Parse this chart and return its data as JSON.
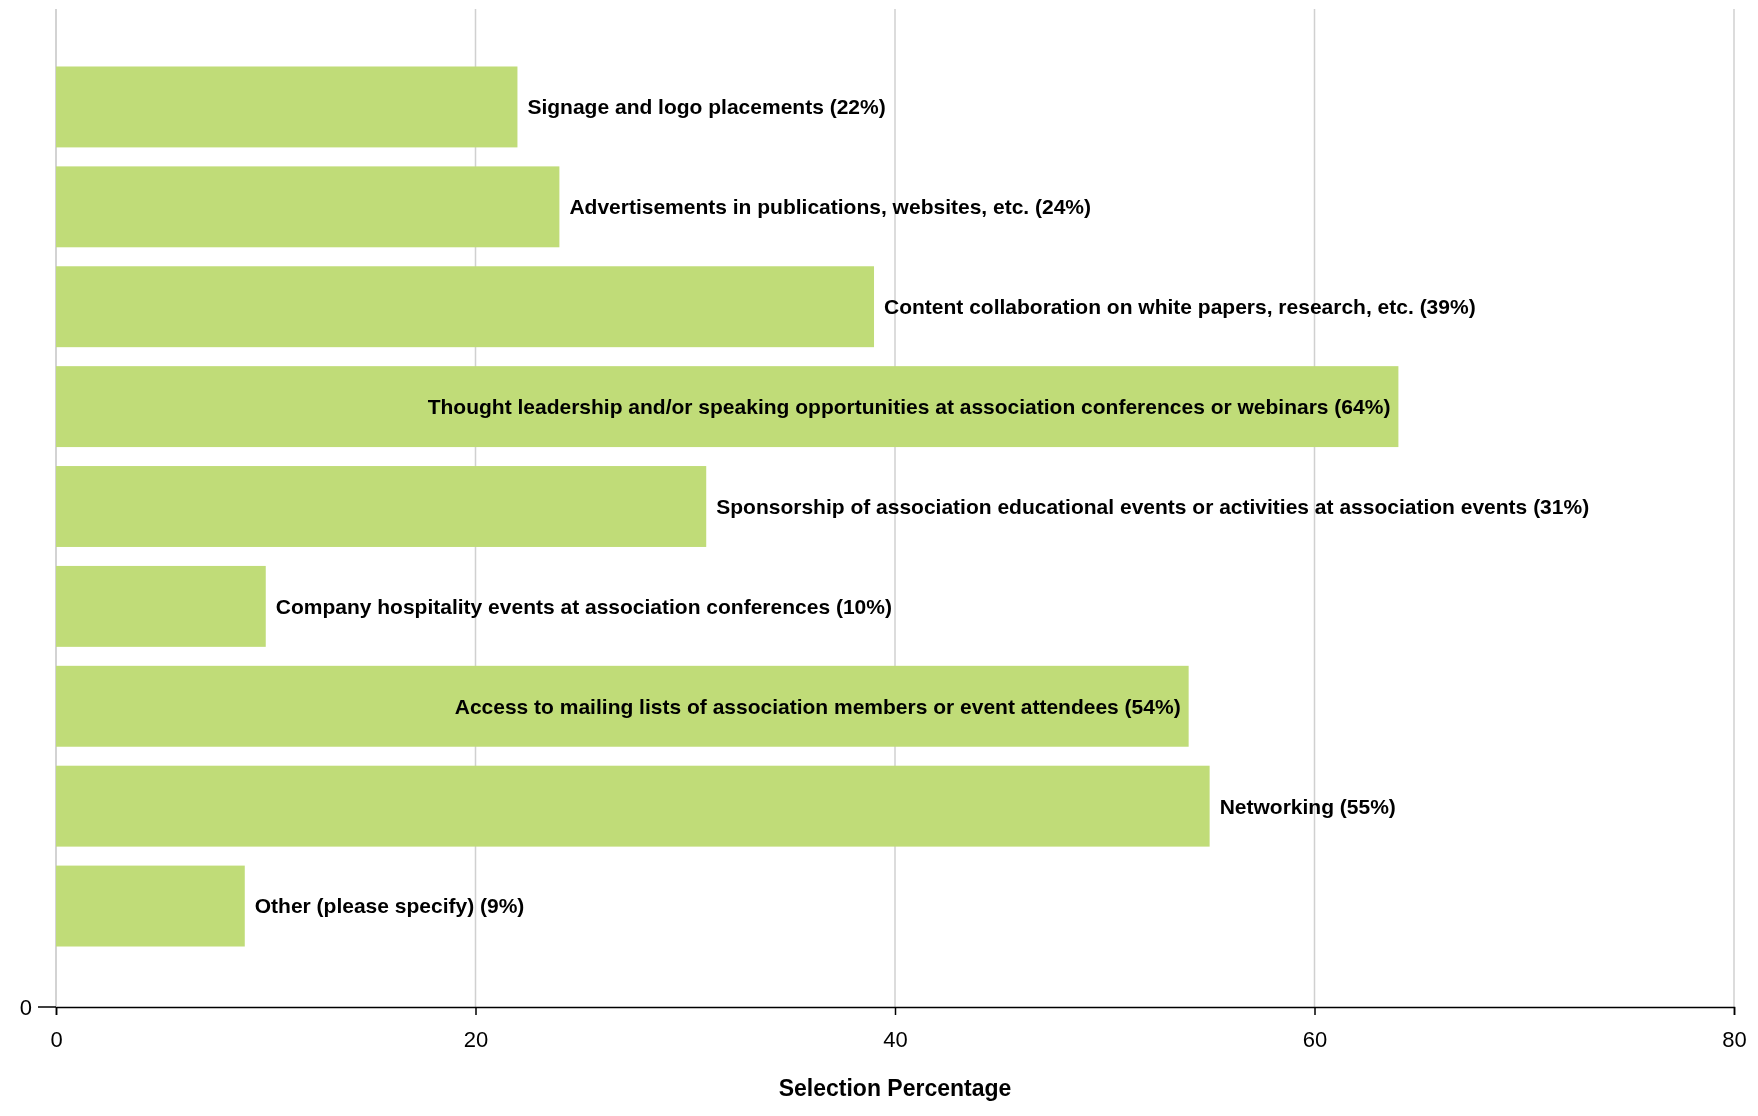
{
  "chart_data": {
    "type": "bar",
    "orientation": "horizontal",
    "xlabel": "Selection Percentage",
    "categories": [
      "Signage and logo placements (22%)",
      "Advertisements in publications, websites, etc. (24%)",
      "Content collaboration on white papers, research, etc. (39%)",
      "Thought leadership and/or speaking opportunities at association conferences or webinars (64%)",
      "Sponsorship of association educational events or activities at association events (31%)",
      "Company hospitality events at association conferences (10%)",
      "Access to mailing lists of association members or event attendees (54%)",
      "Networking (55%)",
      "Other (please specify) (9%)"
    ],
    "values": [
      22,
      24,
      39,
      64,
      31,
      10,
      54,
      55,
      9
    ],
    "color": "#c0dc78",
    "xlim": [
      0,
      80
    ],
    "xticks": [
      0,
      20,
      40,
      60,
      80
    ],
    "grid": "x",
    "annotations": [
      "0"
    ]
  }
}
